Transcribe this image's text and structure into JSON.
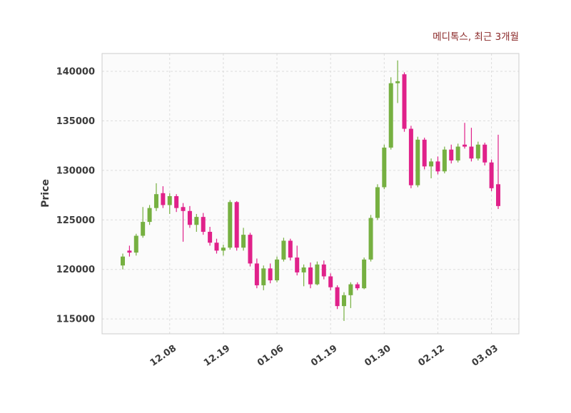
{
  "title": "메디톡스, 최근 3개월",
  "chart_data": {
    "type": "candlestick",
    "title": "메디톡스, 최근 3개월",
    "ylabel": "Price",
    "ylim": [
      113500,
      141800
    ],
    "y_ticks": [
      115000,
      120000,
      125000,
      130000,
      135000,
      140000
    ],
    "x_ticks": [
      {
        "label": "12.08",
        "index": 7
      },
      {
        "label": "12.19",
        "index": 15
      },
      {
        "label": "01.06",
        "index": 23
      },
      {
        "label": "01.19",
        "index": 31
      },
      {
        "label": "01.30",
        "index": 39
      },
      {
        "label": "02.12",
        "index": 47
      },
      {
        "label": "03.03",
        "index": 55
      }
    ],
    "grid": true,
    "legend": "none",
    "colors": {
      "up": "#76b041",
      "down": "#e0218a",
      "title": "#8b2a2a"
    },
    "candles": [
      [
        120400,
        121600,
        120000,
        121300
      ],
      [
        121900,
        122400,
        121300,
        121700
      ],
      [
        121700,
        123600,
        121400,
        123400
      ],
      [
        123400,
        126300,
        123200,
        124800
      ],
      [
        124800,
        126500,
        124500,
        126200
      ],
      [
        126200,
        128700,
        125900,
        127600
      ],
      [
        127700,
        128400,
        126200,
        126500
      ],
      [
        126500,
        127700,
        125600,
        127400
      ],
      [
        127400,
        127600,
        125800,
        126200
      ],
      [
        126300,
        126700,
        122800,
        125900
      ],
      [
        125900,
        126400,
        124200,
        124500
      ],
      [
        124500,
        125600,
        123800,
        125300
      ],
      [
        125300,
        125700,
        123500,
        123800
      ],
      [
        123800,
        124300,
        122400,
        122700
      ],
      [
        122700,
        123100,
        121600,
        121900
      ],
      [
        121900,
        122500,
        121400,
        122200
      ],
      [
        122200,
        127000,
        122000,
        126800
      ],
      [
        126800,
        126900,
        121900,
        122200
      ],
      [
        122200,
        124200,
        121900,
        123500
      ],
      [
        123500,
        123700,
        120300,
        120600
      ],
      [
        120600,
        121100,
        118100,
        118400
      ],
      [
        118400,
        120400,
        117900,
        120100
      ],
      [
        120100,
        120600,
        118600,
        118900
      ],
      [
        118900,
        121300,
        118700,
        121000
      ],
      [
        121000,
        123200,
        120800,
        122900
      ],
      [
        122900,
        123100,
        120900,
        121200
      ],
      [
        121200,
        122400,
        119400,
        119700
      ],
      [
        119700,
        120500,
        118300,
        120200
      ],
      [
        120200,
        120700,
        118100,
        118500
      ],
      [
        118500,
        120800,
        118400,
        120500
      ],
      [
        120500,
        120900,
        119000,
        119300
      ],
      [
        119300,
        119600,
        117900,
        118200
      ],
      [
        118200,
        118400,
        116000,
        116300
      ],
      [
        116300,
        117700,
        114800,
        117400
      ],
      [
        117400,
        118700,
        116100,
        118500
      ],
      [
        118500,
        118700,
        117900,
        118100
      ],
      [
        118100,
        121200,
        118000,
        121000
      ],
      [
        121000,
        125500,
        120800,
        125200
      ],
      [
        125200,
        128600,
        125000,
        128300
      ],
      [
        128300,
        132600,
        128100,
        132300
      ],
      [
        132300,
        139400,
        132100,
        138800
      ],
      [
        138800,
        141100,
        136800,
        139000
      ],
      [
        139700,
        139900,
        133900,
        134200
      ],
      [
        134200,
        134500,
        128200,
        128500
      ],
      [
        128500,
        133400,
        128300,
        133100
      ],
      [
        133100,
        133300,
        130100,
        130400
      ],
      [
        130400,
        131200,
        129200,
        130900
      ],
      [
        130900,
        131400,
        129600,
        129900
      ],
      [
        129900,
        132400,
        129700,
        132100
      ],
      [
        132100,
        132600,
        130700,
        131000
      ],
      [
        131000,
        132700,
        130800,
        132400
      ],
      [
        132600,
        134800,
        132200,
        132400
      ],
      [
        132400,
        134300,
        130900,
        131200
      ],
      [
        131200,
        132900,
        131000,
        132600
      ],
      [
        132600,
        132800,
        130500,
        130800
      ],
      [
        130800,
        131100,
        127900,
        128200
      ],
      [
        128600,
        133600,
        126100,
        126400
      ]
    ]
  }
}
